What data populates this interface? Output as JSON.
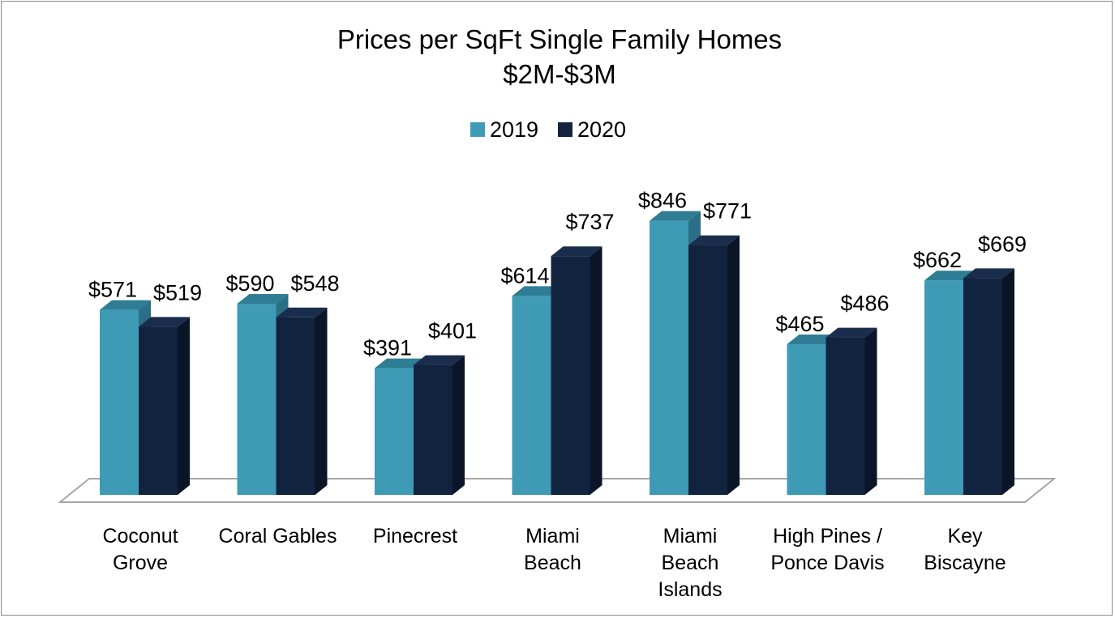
{
  "chart_data": {
    "type": "bar",
    "title": "Prices per SqFt Single Family Homes",
    "subtitle": "$2M-$3M",
    "categories": [
      [
        "Coconut",
        "Grove"
      ],
      [
        "Coral Gables"
      ],
      [
        "Pinecrest"
      ],
      [
        "Miami",
        "Beach"
      ],
      [
        "Miami",
        "Beach",
        "Islands"
      ],
      [
        "High Pines /",
        "Ponce Davis"
      ],
      [
        "Key",
        "Biscayne"
      ]
    ],
    "series": [
      {
        "name": "2019",
        "values": [
          571,
          590,
          391,
          614,
          846,
          465,
          662
        ],
        "color": "#3f9ab5"
      },
      {
        "name": "2020",
        "values": [
          519,
          548,
          401,
          737,
          771,
          486,
          669
        ],
        "color": "#12233f"
      }
    ],
    "data_labels": [
      [
        "$571",
        "$590",
        "$391",
        "$614",
        "$846",
        "$465",
        "$662"
      ],
      [
        "$519",
        "$548",
        "$401",
        "$737",
        "$771",
        "$486",
        "$669"
      ]
    ],
    "ylim": [
      0,
      900
    ],
    "legend_position": "top-center",
    "grid": false
  }
}
